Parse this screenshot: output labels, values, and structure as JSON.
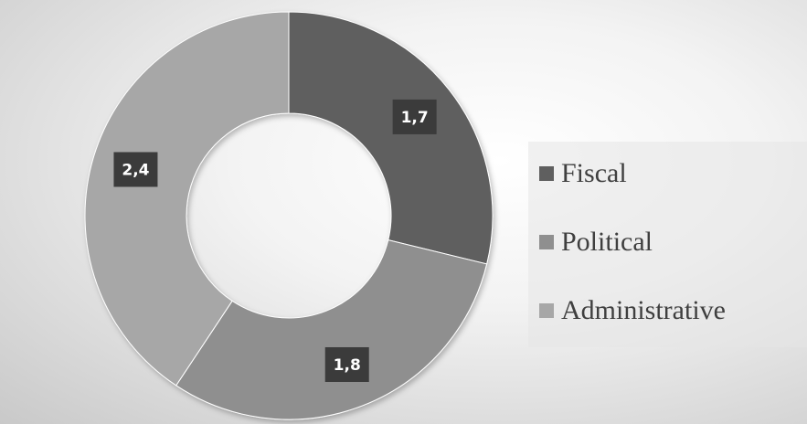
{
  "chart_data": {
    "type": "pie",
    "variant": "doughnut",
    "categories": [
      "Fiscal",
      "Political",
      "Administrative"
    ],
    "values": [
      1.7,
      1.8,
      2.4
    ],
    "value_labels": [
      "1,7",
      "1,8",
      "2,4"
    ],
    "colors": [
      "#5f5f5f",
      "#8f8f8f",
      "#a7a7a7"
    ],
    "label_box_color": "#3b3b3b",
    "legend_position": "right"
  }
}
